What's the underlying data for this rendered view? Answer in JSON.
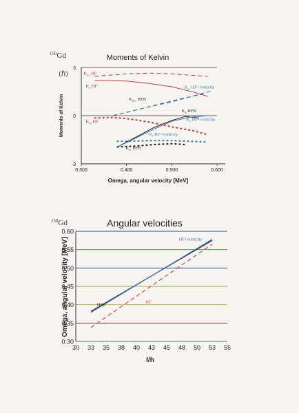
{
  "chart_data": [
    {
      "type": "line",
      "nucleus": "150Gd",
      "title": "Moments of Kelvin",
      "xlabel": "Omega, angular velocity [MeV]",
      "ylabel": "Moments of Kelvin",
      "ylabel_unit": "(ℏ)",
      "xlim": [
        0.3,
        0.6
      ],
      "ylim": [
        -3,
        3
      ],
      "xticks": [
        {
          "v": 0.3,
          "label": "0.300"
        },
        {
          "v": 0.4,
          "label": "0.400"
        },
        {
          "v": 0.5,
          "label": "0.500"
        },
        {
          "v": 0.6,
          "label": "0.600"
        }
      ],
      "yticks": [
        {
          "v": 3,
          "label": "3"
        },
        {
          "v": 0,
          "label": "0"
        },
        {
          "v": -3,
          "label": "-3"
        }
      ],
      "series": [
        {
          "name": "K_xv HF",
          "color": "#d03040",
          "dash": "6,4",
          "x": [
            0.33,
            0.4,
            0.45,
            0.5,
            0.55,
            0.58
          ],
          "y": [
            2.45,
            2.6,
            2.65,
            2.6,
            2.5,
            2.45
          ]
        },
        {
          "name": "K_z HF",
          "color": "#d03040",
          "dash": "",
          "x": [
            0.33,
            0.4,
            0.45,
            0.5,
            0.55,
            0.58
          ],
          "y": [
            2.2,
            2.15,
            2.0,
            1.8,
            1.45,
            1.2
          ]
        },
        {
          "name": "K_xv HFB",
          "color": "#404a70",
          "dash": "6,4",
          "x": [
            0.37,
            0.42,
            0.47,
            0.52,
            0.57
          ],
          "y": [
            0.0,
            0.35,
            0.7,
            1.05,
            1.35
          ]
        },
        {
          "name": "K_z HF+vorticity",
          "color": "#3a78c0",
          "dash": "6,4",
          "x": [
            0.4,
            0.45,
            0.5,
            0.55,
            0.59
          ],
          "y": [
            0.2,
            0.55,
            0.85,
            1.25,
            1.55
          ]
        },
        {
          "name": "K_z HFB",
          "color": "#202020",
          "dash": "",
          "x": [
            0.38,
            0.42,
            0.46,
            0.5,
            0.53,
            0.56
          ],
          "y": [
            -1.95,
            -1.35,
            -0.75,
            -0.3,
            -0.05,
            -0.15
          ]
        },
        {
          "name": "K_z HF+vorticity",
          "color": "#3a78c0",
          "dash": "",
          "x": [
            0.38,
            0.42,
            0.46,
            0.5,
            0.54,
            0.58
          ],
          "y": [
            -1.95,
            -1.4,
            -0.85,
            -0.35,
            -0.1,
            0.0
          ]
        },
        {
          "name": "K_lv HF",
          "color": "#d03040",
          "dash": "1,5",
          "x": [
            0.33,
            0.37,
            0.4,
            0.45,
            0.5,
            0.55,
            0.58
          ],
          "y": [
            -0.15,
            -0.12,
            -0.18,
            -0.4,
            -0.7,
            -0.95,
            -1.2
          ]
        },
        {
          "name": "K_l HF+vorticity",
          "color": "#3a78c0",
          "dash": "1,5",
          "x": [
            0.38,
            0.42,
            0.46,
            0.5,
            0.54,
            0.58
          ],
          "y": [
            -1.6,
            -1.58,
            -1.55,
            -1.55,
            -1.6,
            -1.65
          ]
        },
        {
          "name": "K_lv HFB",
          "color": "#202020",
          "dash": "1,5",
          "x": [
            0.38,
            0.42,
            0.46,
            0.5,
            0.53
          ],
          "y": [
            -1.95,
            -1.9,
            -1.8,
            -1.75,
            -1.8
          ]
        }
      ],
      "labels": [
        {
          "main": "K",
          "sub": "xv",
          "rest": " HF",
          "color": "#d03040",
          "x": 0.305,
          "y": 2.55
        },
        {
          "main": "K",
          "sub": "z",
          "rest": " HF",
          "color": "#d03040",
          "x": 0.31,
          "y": 1.75
        },
        {
          "main": "K",
          "sub": "xv",
          "rest": ", HFB",
          "color": "#303030",
          "x": 0.405,
          "y": 0.95
        },
        {
          "main": "K",
          "sub": "lv",
          "rest": " HF+vorticity",
          "color": "#3a78c0",
          "x": 0.528,
          "y": 1.7
        },
        {
          "main": "K",
          "sub": "z",
          "rest": " HFB",
          "color": "#303030",
          "x": 0.522,
          "y": 0.22
        },
        {
          "main": "K",
          "sub": "z",
          "rest": " HF+vorticity",
          "color": "#3a78c0",
          "x": 0.532,
          "y": -0.32
        },
        {
          "main": "K",
          "sub": "lv",
          "rest": " HF",
          "color": "#d03040",
          "x": 0.31,
          "y": -0.45
        },
        {
          "main": "K",
          "sub": "l",
          "rest": "  HF+vorticity",
          "color": "#3a78c0",
          "x": 0.45,
          "y": -1.25
        },
        {
          "main": "K",
          "sub": "lv",
          "rest": " HFB",
          "color": "#303030",
          "x": 0.398,
          "y": -2.1
        }
      ]
    },
    {
      "type": "line",
      "nucleus": "150Gd",
      "title": "Angular velocities",
      "xlabel": "I/h",
      "ylabel": "Omega, angular velocity [MeV]",
      "xlim": [
        30,
        55
      ],
      "ylim": [
        0.3,
        0.6
      ],
      "xticks": [
        "30",
        "33",
        "35",
        "38",
        "40",
        "43",
        "45",
        "48",
        "50",
        "53",
        "55"
      ],
      "yticks": [
        "0.30",
        "0.35",
        "0.40",
        "0.45",
        "0.50",
        "0.55",
        "0.60"
      ],
      "gridline_colors": [
        "#4a6a90",
        "#8a3030",
        "#b8b040",
        "#98b048",
        "#3050a0",
        "#50a050",
        "#3050a0"
      ],
      "series": [
        {
          "name": "HFB",
          "color": "#303030",
          "dash": "",
          "x": [
            32.5,
            52.5
          ],
          "y": [
            0.382,
            0.575
          ]
        },
        {
          "name": "HF+vorticity",
          "color": "#3a6ec0",
          "dash": "",
          "x": [
            32.5,
            52.5
          ],
          "y": [
            0.379,
            0.578
          ]
        },
        {
          "name": "HF",
          "color": "#e04050",
          "dash": "6,4",
          "x": [
            32.5,
            52.5
          ],
          "y": [
            0.338,
            0.565
          ]
        }
      ],
      "labels": [
        {
          "text": "HFB",
          "color": "#303030",
          "x": 33.5,
          "y": 0.397
        },
        {
          "text": "HF+vorticity",
          "color": "#3a6ec0",
          "x": 47.0,
          "y": 0.575
        },
        {
          "text": "HF",
          "color": "#e04050",
          "x": 41.5,
          "y": 0.404
        }
      ]
    }
  ]
}
